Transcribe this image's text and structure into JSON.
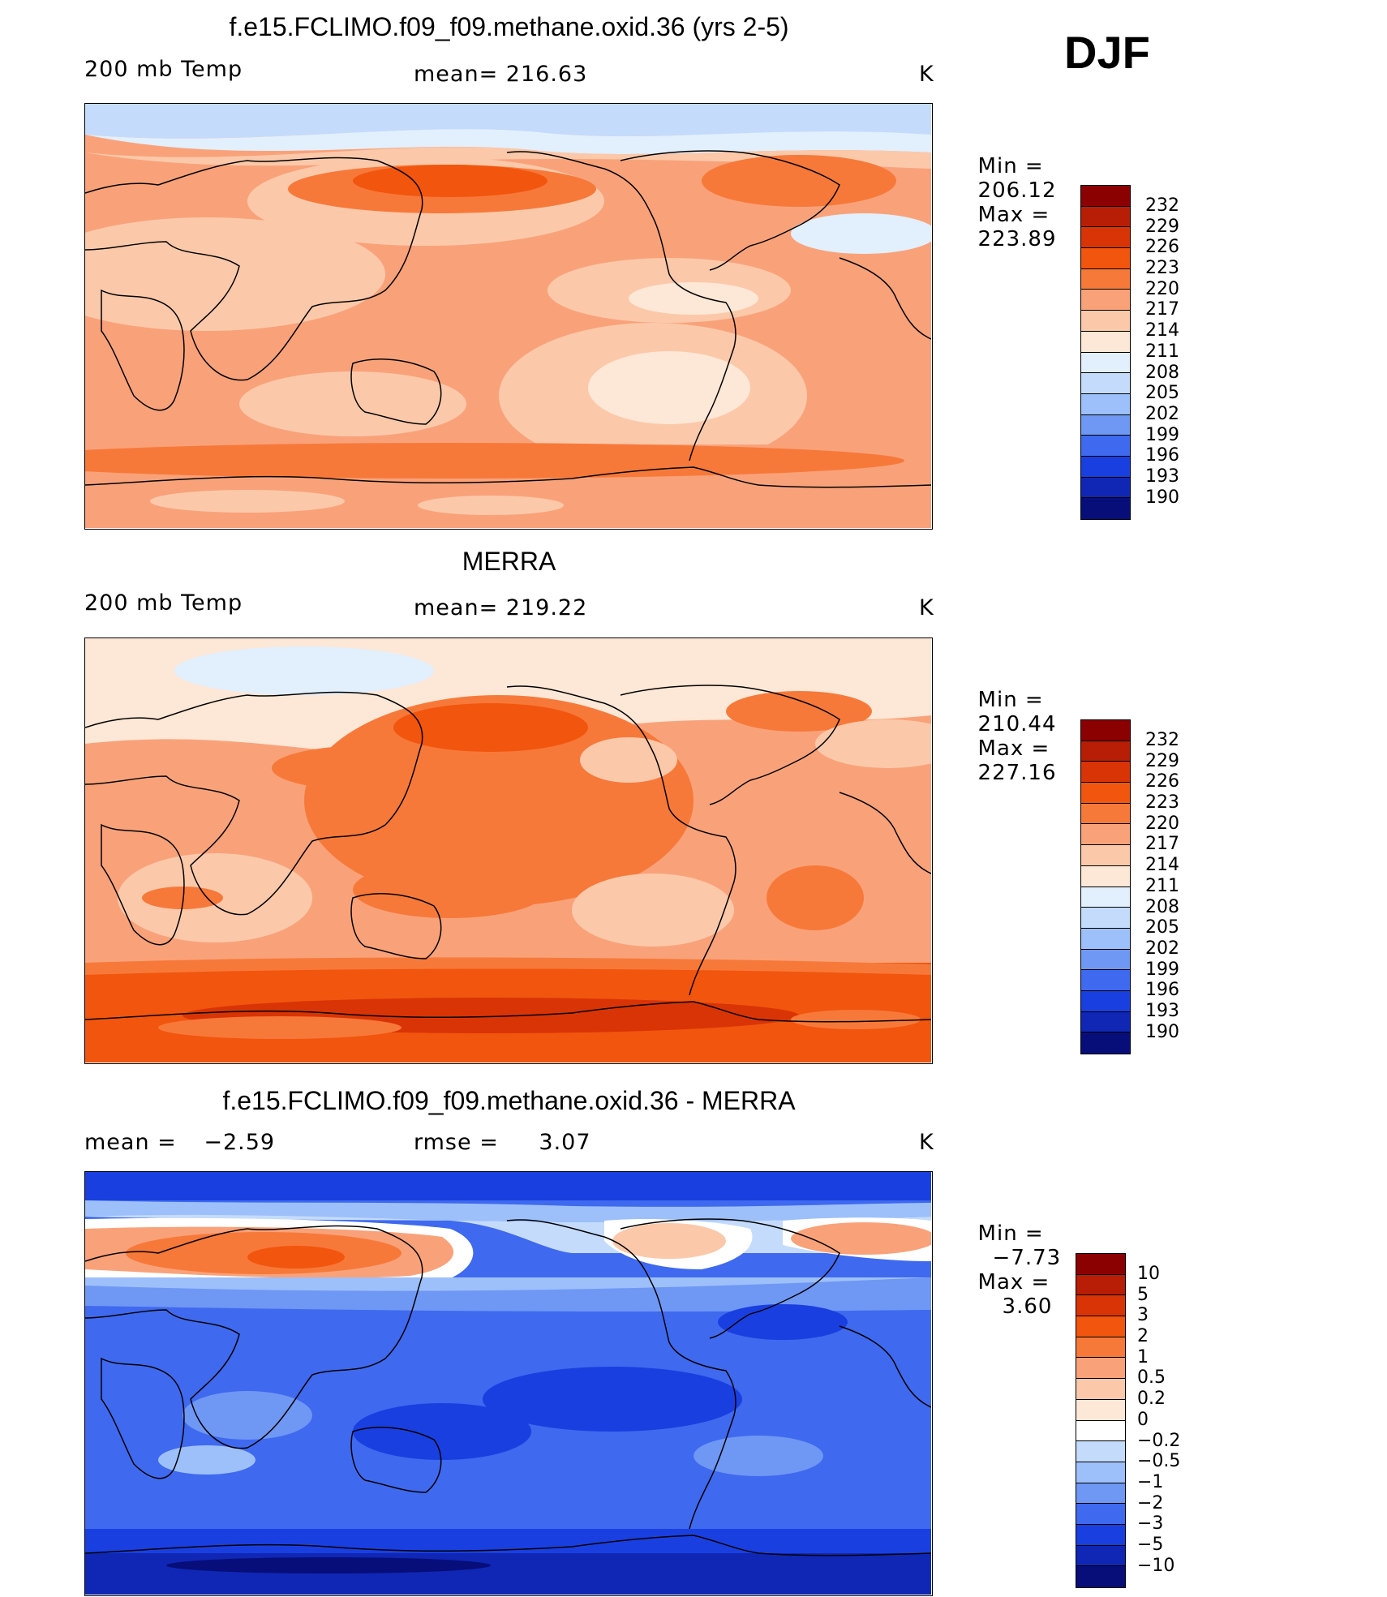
{
  "season": "DJF",
  "units": "K",
  "panels": [
    {
      "title": "f.e15.FCLIMO.f09_f09.methane.oxid.36 (yrs 2-5)",
      "field_label": "200 mb Temp",
      "stat_label": "mean=",
      "stat_value": "216.63",
      "units": "K",
      "min_label": "Min =",
      "min_value": "206.12",
      "max_label": "Max =",
      "max_value": "223.89",
      "colorbar_labels": [
        "232",
        "229",
        "226",
        "223",
        "220",
        "217",
        "214",
        "211",
        "208",
        "205",
        "202",
        "199",
        "196",
        "193",
        "190"
      ]
    },
    {
      "title": "MERRA",
      "field_label": "200 mb Temp",
      "stat_label": "mean=",
      "stat_value": "219.22",
      "units": "K",
      "min_label": "Min =",
      "min_value": "210.44",
      "max_label": "Max =",
      "max_value": "227.16",
      "colorbar_labels": [
        "232",
        "229",
        "226",
        "223",
        "220",
        "217",
        "214",
        "211",
        "208",
        "205",
        "202",
        "199",
        "196",
        "193",
        "190"
      ]
    },
    {
      "title": "f.e15.FCLIMO.f09_f09.methane.oxid.36 - MERRA",
      "field_label": "mean =",
      "field_value": "−2.59",
      "stat_label": "rmse =",
      "stat_value": "3.07",
      "units": "K",
      "min_label": "Min =",
      "min_value": "−7.73",
      "max_label": "Max =",
      "max_value": "3.60",
      "colorbar_labels": [
        "10",
        "5",
        "3",
        "2",
        "1",
        "0.5",
        "0.2",
        "0",
        "−0.2",
        "−0.5",
        "−1",
        "−2",
        "−3",
        "−5",
        "−10"
      ]
    }
  ],
  "colors": {
    "abs_scale": [
      "#8b0000",
      "#b81d05",
      "#d93406",
      "#f2550e",
      "#f7793a",
      "#f9a27a",
      "#fbc9aa",
      "#fde7d6",
      "#e2effd",
      "#c4dbfc",
      "#9dc0fb",
      "#6f97f4",
      "#3f69ee",
      "#1a3fe0",
      "#0f27b4",
      "#070e7a"
    ],
    "diff_scale": [
      "#8b0000",
      "#b81d05",
      "#d93406",
      "#f2550e",
      "#f7793a",
      "#f9a27a",
      "#fbc9aa",
      "#fde7d6",
      "#ffffff",
      "#c4dbfc",
      "#9dc0fb",
      "#6f97f4",
      "#3f69ee",
      "#1a3fe0",
      "#0f27b4",
      "#070e7a"
    ]
  }
}
